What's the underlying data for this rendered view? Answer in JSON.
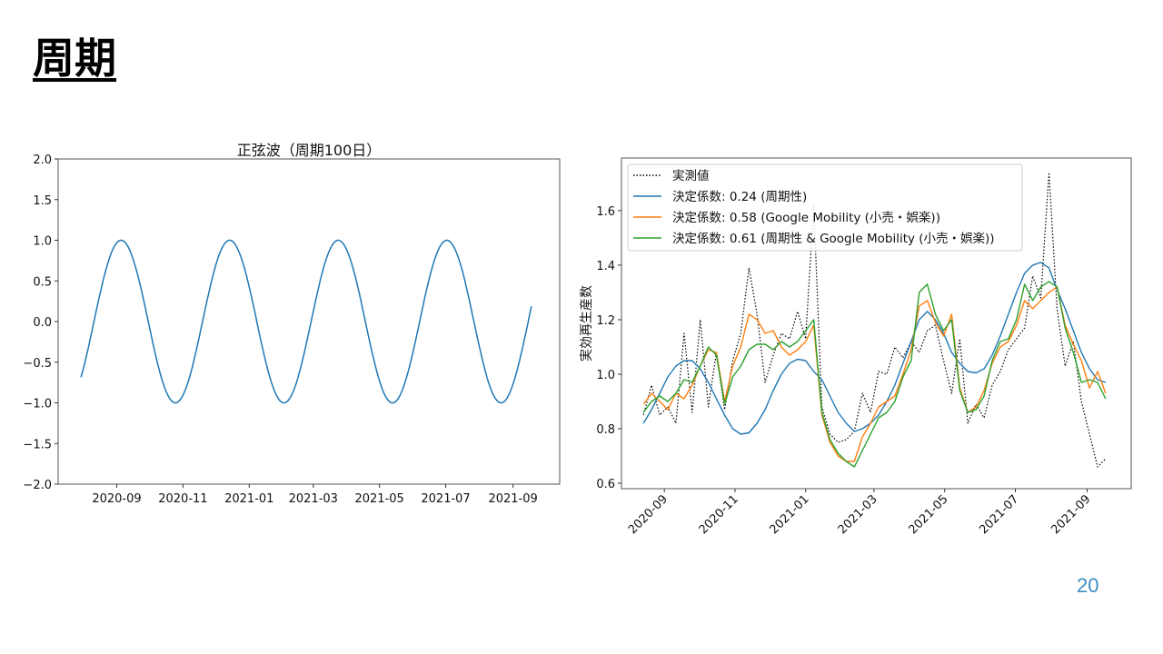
{
  "slide": {
    "title": "周期",
    "page_number": "20"
  },
  "colors": {
    "blue": "#1f77b4",
    "orange": "#ff7f0e",
    "green": "#2ca02c",
    "observed": "#000000",
    "page_number": "#3b8fc2"
  },
  "chart_data": [
    {
      "type": "line",
      "title": "正弦波（周期100日）",
      "xlabel": "",
      "ylabel": "",
      "xlim": [
        "2020-07-09",
        "2021-10-14"
      ],
      "ylim": [
        -2.0,
        2.0
      ],
      "x_ticks": [
        "2020-09",
        "2020-11",
        "2021-01",
        "2021-03",
        "2021-05",
        "2021-07",
        "2021-09"
      ],
      "y_ticks": [
        "−2.0",
        "−1.5",
        "−1.0",
        "−0.5",
        "0.0",
        "0.5",
        "1.0",
        "1.5",
        "2.0"
      ],
      "y_tick_values": [
        -2.0,
        -1.5,
        -1.0,
        -0.5,
        0.0,
        0.5,
        1.0,
        1.5,
        2.0
      ],
      "grid": false,
      "series": [
        {
          "name": "sine",
          "function": "sin",
          "amplitude": 1.0,
          "period_days": 100,
          "zero_crossing_rising": "2020-08-11",
          "start": "2020-07-30",
          "end": "2021-09-18",
          "color": "#1f77b4"
        }
      ]
    },
    {
      "type": "line",
      "title": "",
      "xlabel": "",
      "ylabel": "実効再生産数",
      "xlim": [
        "2020-07-26",
        "2021-10-09"
      ],
      "ylim": [
        0.58,
        1.793
      ],
      "x_ticks": [
        "2020-09",
        "2020-11",
        "2021-01",
        "2021-03",
        "2021-05",
        "2021-07",
        "2021-09"
      ],
      "y_ticks": [
        "0.6",
        "0.8",
        "1.0",
        "1.2",
        "1.4",
        "1.6"
      ],
      "y_tick_values": [
        0.6,
        0.8,
        1.0,
        1.2,
        1.4,
        1.6
      ],
      "grid": false,
      "legend_position": "top-left",
      "x_start": "2020-08-14",
      "x_step_days": 7,
      "series": [
        {
          "name": "実測値",
          "style": "dotted",
          "color": "#000000",
          "values": [
            0.85,
            0.96,
            0.85,
            0.88,
            0.82,
            1.15,
            0.86,
            1.2,
            0.88,
            1.08,
            0.87,
            1.05,
            1.15,
            1.39,
            1.22,
            0.97,
            1.07,
            1.15,
            1.13,
            1.23,
            1.13,
            1.62,
            0.88,
            0.78,
            0.75,
            0.76,
            0.79,
            0.93,
            0.86,
            1.01,
            1.0,
            1.1,
            1.06,
            1.12,
            1.08,
            1.16,
            1.18,
            1.05,
            0.93,
            1.13,
            0.82,
            0.89,
            0.84,
            0.96,
            1.01,
            1.09,
            1.13,
            1.17,
            1.36,
            1.28,
            1.74,
            1.24,
            1.03,
            1.12,
            0.9,
            0.78,
            0.66,
            0.69
          ]
        },
        {
          "name": "決定係数: 0.24 (周期性)",
          "style": "solid",
          "color": "#1f77b4",
          "values": [
            0.82,
            0.87,
            0.93,
            0.99,
            1.03,
            1.05,
            1.05,
            1.02,
            0.97,
            0.91,
            0.85,
            0.8,
            0.78,
            0.785,
            0.82,
            0.87,
            0.94,
            1.0,
            1.04,
            1.055,
            1.05,
            1.01,
            0.98,
            0.92,
            0.86,
            0.82,
            0.79,
            0.8,
            0.82,
            0.85,
            0.9,
            0.96,
            1.04,
            1.12,
            1.2,
            1.23,
            1.2,
            1.15,
            1.08,
            1.04,
            1.01,
            1.005,
            1.02,
            1.07,
            1.14,
            1.22,
            1.3,
            1.37,
            1.4,
            1.41,
            1.39,
            1.31,
            1.24,
            1.16,
            1.08,
            1.02,
            0.98,
            0.97
          ]
        },
        {
          "name": "決定係数: 0.58 (Google Mobility (小売・娯楽))",
          "style": "solid",
          "color": "#ff7f0e",
          "values": [
            0.89,
            0.93,
            0.9,
            0.87,
            0.93,
            0.91,
            0.96,
            1.03,
            1.09,
            1.08,
            0.9,
            1.03,
            1.1,
            1.22,
            1.2,
            1.15,
            1.16,
            1.1,
            1.07,
            1.09,
            1.12,
            1.18,
            0.85,
            0.75,
            0.7,
            0.68,
            0.68,
            0.77,
            0.82,
            0.88,
            0.9,
            0.92,
            1.0,
            1.09,
            1.25,
            1.27,
            1.19,
            1.14,
            1.22,
            0.95,
            0.86,
            0.88,
            0.94,
            1.04,
            1.1,
            1.12,
            1.18,
            1.27,
            1.24,
            1.27,
            1.3,
            1.32,
            1.18,
            1.11,
            1.05,
            0.95,
            1.01,
            0.93
          ]
        },
        {
          "name": "決定係数: 0.61 (周期性 & Google Mobility (小売・娯楽))",
          "style": "solid",
          "color": "#2ca02c",
          "values": [
            0.86,
            0.9,
            0.92,
            0.9,
            0.93,
            0.98,
            0.97,
            1.03,
            1.1,
            1.07,
            0.89,
            0.99,
            1.03,
            1.09,
            1.11,
            1.11,
            1.09,
            1.12,
            1.1,
            1.12,
            1.16,
            1.2,
            0.86,
            0.76,
            0.71,
            0.68,
            0.66,
            0.72,
            0.78,
            0.84,
            0.86,
            0.9,
            0.99,
            1.05,
            1.3,
            1.33,
            1.22,
            1.16,
            1.2,
            0.94,
            0.86,
            0.87,
            0.92,
            1.05,
            1.12,
            1.13,
            1.2,
            1.33,
            1.27,
            1.32,
            1.34,
            1.32,
            1.17,
            1.08,
            0.97,
            0.98,
            0.97,
            0.91
          ]
        }
      ]
    }
  ]
}
